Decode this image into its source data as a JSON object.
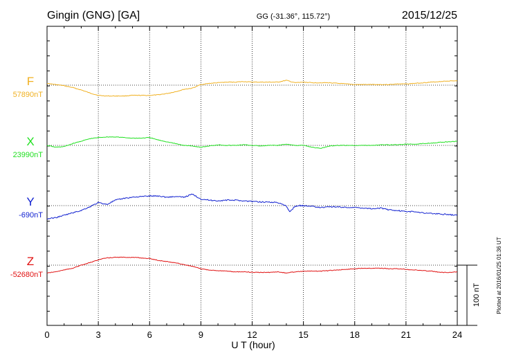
{
  "header": {
    "station": "Gingin (GNG)  [GA]",
    "coords": "GG (-31.36°, 115.72°)",
    "date": "2015/12/25"
  },
  "plotted_note": "Plotted at 2016/01/25 01:36 UT",
  "scale_label": "100 nT",
  "chart_data": {
    "type": "line",
    "xlabel": "U T (hour)",
    "xlim": [
      0,
      24
    ],
    "xticks": [
      "0",
      "3",
      "6",
      "9",
      "12",
      "15",
      "18",
      "21",
      "24"
    ],
    "scale_nT": 100,
    "grid": true,
    "series": [
      {
        "name": "F",
        "baseline_label": "57890nT",
        "color": "#f0b020",
        "baseline_nT": 57890,
        "x": [
          0,
          0.5,
          1,
          1.5,
          2,
          2.5,
          3,
          3.5,
          4,
          4.5,
          5,
          5.5,
          6,
          6.5,
          7,
          7.5,
          8,
          8.5,
          9,
          9.5,
          10,
          10.5,
          11,
          11.5,
          12,
          12.5,
          13,
          13.5,
          14,
          14.5,
          15,
          15.5,
          16,
          16.5,
          17,
          17.5,
          18,
          18.5,
          19,
          19.5,
          20,
          20.5,
          21,
          21.5,
          22,
          22.5,
          23,
          23.5,
          24
        ],
        "y": [
          57893,
          57891,
          57889,
          57886,
          57882,
          57877,
          57873,
          57872,
          57872,
          57872,
          57873,
          57873,
          57873,
          57874,
          57876,
          57879,
          57883,
          57885,
          57891,
          57893,
          57894,
          57895,
          57895,
          57896,
          57895,
          57895,
          57895,
          57895,
          57898,
          57894,
          57895,
          57894,
          57894,
          57894,
          57893,
          57892,
          57891,
          57891,
          57891,
          57891,
          57891,
          57892,
          57892,
          57893,
          57894,
          57895,
          57896,
          57897,
          57897
        ]
      },
      {
        "name": "X",
        "baseline_label": "23990nT",
        "color": "#20e020",
        "baseline_nT": 23990,
        "x": [
          0,
          0.5,
          1,
          1.5,
          2,
          2.5,
          3,
          3.5,
          4,
          4.5,
          5,
          5.5,
          6,
          6.5,
          7,
          7.5,
          8,
          8.5,
          9,
          9.5,
          10,
          10.5,
          11,
          11.5,
          12,
          12.5,
          13,
          13.5,
          14,
          14.5,
          15,
          15.5,
          16,
          16.5,
          17,
          17.5,
          18,
          18.5,
          19,
          19.5,
          20,
          20.5,
          21,
          21.5,
          22,
          22.5,
          23,
          23.5,
          24
        ],
        "y": [
          23990,
          23987,
          23988,
          23993,
          23997,
          24001,
          24003,
          24004,
          24004,
          24003,
          24002,
          24002,
          24003,
          23999,
          23996,
          23993,
          23990,
          23989,
          23987,
          23989,
          23991,
          23990,
          23990,
          23991,
          23990,
          23989,
          23990,
          23990,
          23992,
          23990,
          23990,
          23987,
          23985,
          23989,
          23990,
          23990,
          23990,
          23990,
          23990,
          23991,
          23991,
          23991,
          23992,
          23992,
          23993,
          23994,
          23995,
          23996,
          23997
        ]
      },
      {
        "name": "Y",
        "baseline_label": "-690nT",
        "color": "#1020d0",
        "baseline_nT": -690,
        "x": [
          0,
          0.5,
          1,
          1.5,
          2,
          2.5,
          3,
          3.5,
          4,
          4.5,
          5,
          5.5,
          6,
          6.5,
          7,
          7.5,
          8,
          8.5,
          9,
          9.5,
          10,
          10.5,
          11,
          11.5,
          12,
          12.5,
          13,
          13.5,
          14,
          14.2,
          14.5,
          14.8,
          15,
          15.5,
          16,
          16.5,
          17,
          17.5,
          18,
          18.5,
          19,
          19.5,
          20,
          20.5,
          21,
          21.5,
          22,
          22.5,
          23,
          23.5,
          24
        ],
        "y": [
          -712,
          -710,
          -706,
          -702,
          -698,
          -692,
          -685,
          -688,
          -681,
          -678,
          -676,
          -675,
          -674,
          -674,
          -676,
          -675,
          -676,
          -671,
          -679,
          -681,
          -682,
          -681,
          -681,
          -682,
          -683,
          -684,
          -684,
          -685,
          -691,
          -701,
          -691,
          -690,
          -690,
          -691,
          -693,
          -692,
          -692,
          -693,
          -693,
          -694,
          -695,
          -694,
          -697,
          -698,
          -700,
          -700,
          -702,
          -703,
          -704,
          -705,
          -706
        ]
      },
      {
        "name": "Z",
        "baseline_label": "-52680nT",
        "color": "#e01010",
        "baseline_nT": -52680,
        "x": [
          0,
          0.5,
          1,
          1.5,
          2,
          2.5,
          3,
          3.5,
          4,
          4.5,
          5,
          5.5,
          6,
          6.5,
          7,
          7.5,
          8,
          8.5,
          9,
          9.5,
          10,
          10.5,
          11,
          11.5,
          12,
          12.5,
          13,
          13.5,
          14,
          14.5,
          15,
          15.5,
          16,
          16.5,
          17,
          17.5,
          18,
          18.5,
          19,
          19.5,
          20,
          20.5,
          21,
          21.5,
          22,
          22.5,
          23,
          23.5,
          24
        ],
        "y": [
          -52693,
          -52691,
          -52688,
          -52685,
          -52680,
          -52676,
          -52671,
          -52668,
          -52667,
          -52667,
          -52667,
          -52668,
          -52669,
          -52672,
          -52674,
          -52676,
          -52679,
          -52682,
          -52686,
          -52688,
          -52689,
          -52690,
          -52691,
          -52691,
          -52692,
          -52692,
          -52692,
          -52691,
          -52693,
          -52691,
          -52690,
          -52690,
          -52690,
          -52689,
          -52688,
          -52687,
          -52686,
          -52685,
          -52685,
          -52685,
          -52686,
          -52686,
          -52687,
          -52688,
          -52689,
          -52690,
          -52692,
          -52692,
          -52691
        ]
      }
    ]
  }
}
